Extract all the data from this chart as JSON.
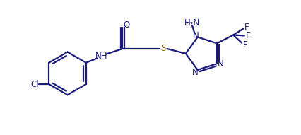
{
  "bg_color": "#ffffff",
  "bond_color": "#1a1a7a",
  "atom_color_N": "#1a1a7a",
  "atom_color_S": "#8B7000",
  "atom_color_O": "#1a1a7a",
  "atom_color_F": "#1a1a7a",
  "atom_color_Cl": "#1a1a7a",
  "atom_color_NH": "#1a1a7a",
  "line_width": 1.6,
  "font_size": 8.5,
  "figsize": [
    4.27,
    1.91
  ],
  "dpi": 100,
  "xlim": [
    0,
    10
  ],
  "ylim": [
    0,
    4.5
  ]
}
